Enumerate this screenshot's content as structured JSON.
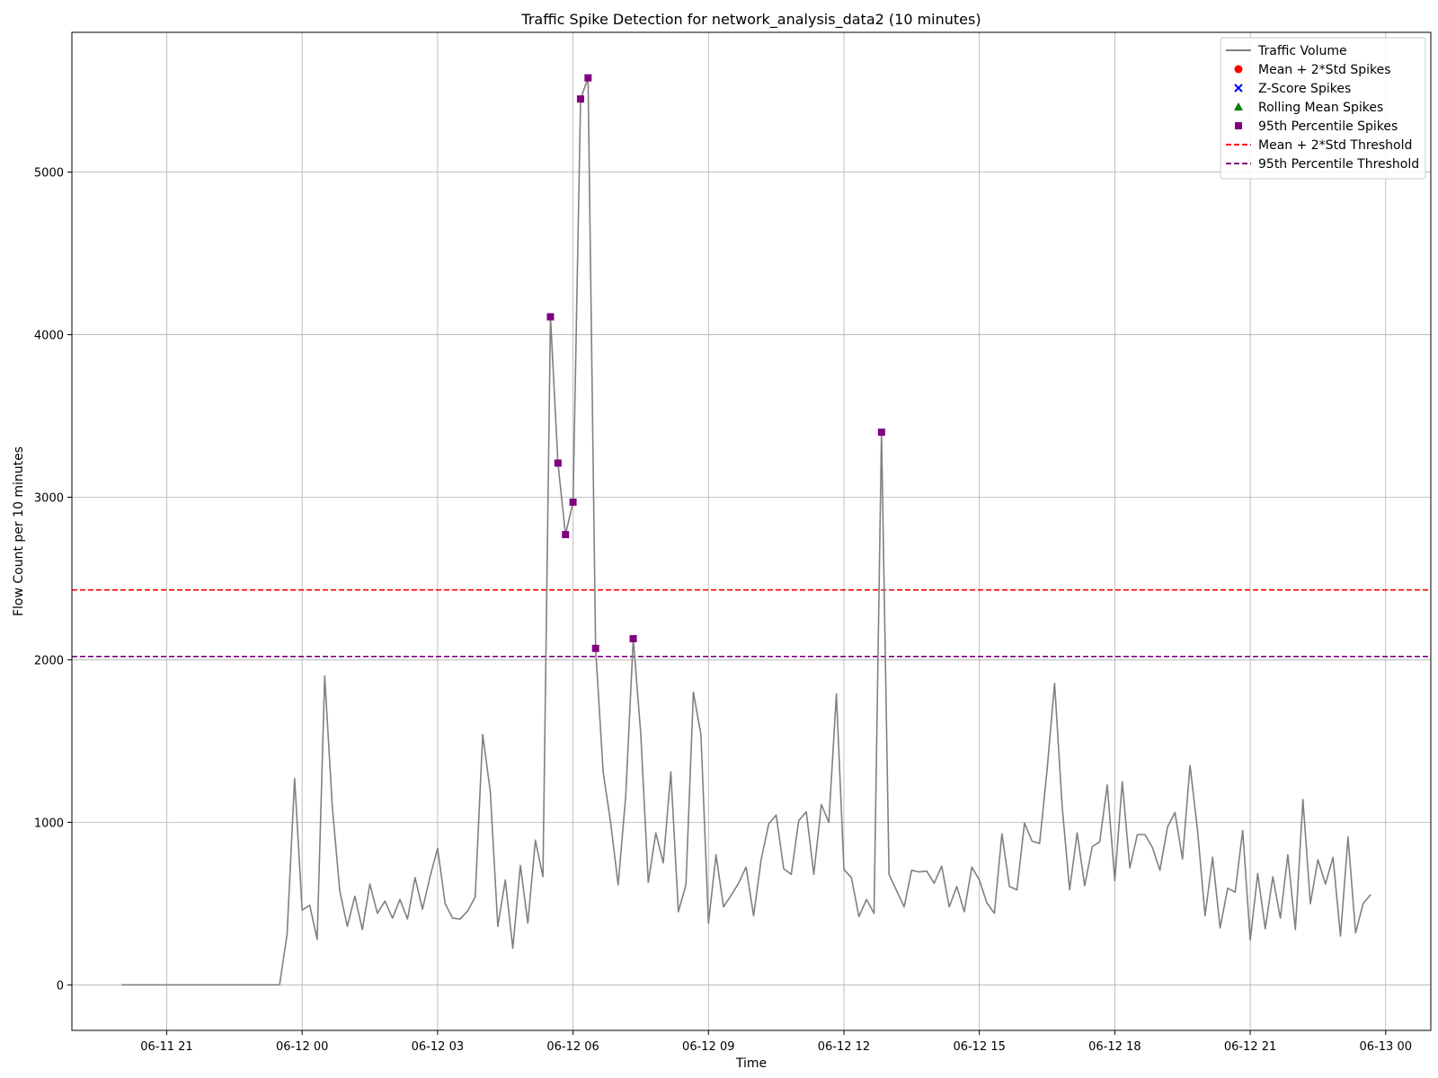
{
  "chart_data": {
    "type": "line",
    "title": "Traffic Spike Detection for network_analysis_data2 (10 minutes)",
    "xlabel": "Time",
    "ylabel": "Flow Count per 10 minutes",
    "x_start": "2024-06-11 20:00",
    "step_minutes": 10,
    "xlim": [
      "2024-06-11 18:54",
      "2024-06-13 01:00"
    ],
    "ylim": [
      -280,
      5860
    ],
    "xticks": [
      {
        "time": "2024-06-11 21:00",
        "label": "06-11 21"
      },
      {
        "time": "2024-06-12 00:00",
        "label": "06-12 00"
      },
      {
        "time": "2024-06-12 03:00",
        "label": "06-12 03"
      },
      {
        "time": "2024-06-12 06:00",
        "label": "06-12 06"
      },
      {
        "time": "2024-06-12 09:00",
        "label": "06-12 09"
      },
      {
        "time": "2024-06-12 12:00",
        "label": "06-12 12"
      },
      {
        "time": "2024-06-12 15:00",
        "label": "06-12 15"
      },
      {
        "time": "2024-06-12 18:00",
        "label": "06-12 18"
      },
      {
        "time": "2024-06-12 21:00",
        "label": "06-12 21"
      },
      {
        "time": "2024-06-13 00:00",
        "label": "06-13 00"
      }
    ],
    "yticks": [
      0,
      1000,
      2000,
      3000,
      4000,
      5000
    ],
    "grid": true,
    "legend_position": "top-right",
    "series": [
      {
        "name": "Traffic Volume",
        "color": "#808080",
        "values": [
          0,
          0,
          0,
          0,
          0,
          0,
          0,
          0,
          0,
          0,
          0,
          0,
          0,
          0,
          0,
          0,
          0,
          0,
          0,
          0,
          0,
          0,
          310,
          1270,
          460,
          490,
          280,
          1900,
          1100,
          580,
          360,
          545,
          340,
          620,
          440,
          515,
          410,
          525,
          405,
          660,
          465,
          665,
          840,
          500,
          410,
          405,
          455,
          540,
          1540,
          1190,
          360,
          645,
          225,
          735,
          380,
          890,
          665,
          4110,
          3210,
          2770,
          2970,
          5450,
          5580,
          2070,
          1310,
          1000,
          615,
          1160,
          2130,
          1550,
          630,
          935,
          750,
          1310,
          450,
          615,
          1800,
          1540,
          380,
          800,
          480,
          550,
          625,
          725,
          425,
          770,
          990,
          1045,
          715,
          680,
          1010,
          1065,
          680,
          1110,
          1000,
          1790,
          710,
          660,
          420,
          525,
          440,
          3400,
          680,
          580,
          480,
          705,
          695,
          700,
          625,
          730,
          480,
          605,
          450,
          725,
          645,
          505,
          440,
          930,
          605,
          585,
          995,
          885,
          870,
          1320,
          1855,
          1100,
          585,
          935,
          610,
          850,
          880,
          1230,
          640,
          1250,
          720,
          925,
          925,
          845,
          705,
          970,
          1060,
          775,
          1350,
          950,
          425,
          785,
          350,
          595,
          570,
          950,
          275,
          685,
          345,
          665,
          410,
          800,
          340,
          1140,
          500,
          770,
          620,
          785,
          300,
          910,
          320,
          500,
          555
        ]
      }
    ],
    "spikes": {
      "name": "95th Percentile Spikes",
      "color": "#800080",
      "points": [
        {
          "time": "2024-06-12 05:30",
          "value": 4110
        },
        {
          "time": "2024-06-12 05:40",
          "value": 3210
        },
        {
          "time": "2024-06-12 05:50",
          "value": 2770
        },
        {
          "time": "2024-06-12 06:00",
          "value": 2970
        },
        {
          "time": "2024-06-12 06:10",
          "value": 5450
        },
        {
          "time": "2024-06-12 06:20",
          "value": 5580
        },
        {
          "time": "2024-06-12 06:30",
          "value": 2070
        },
        {
          "time": "2024-06-12 07:20",
          "value": 2130
        },
        {
          "time": "2024-06-12 12:50",
          "value": 3400
        }
      ]
    },
    "thresholds": [
      {
        "name": "Mean + 2*Std Threshold",
        "value": 2430,
        "color": "#ff0000"
      },
      {
        "name": "95th Percentile Threshold",
        "value": 2020,
        "color": "#800080"
      }
    ],
    "legend": [
      {
        "label": "Traffic Volume",
        "marker": "line",
        "color": "#808080"
      },
      {
        "label": "Mean + 2*Std Spikes",
        "marker": "circle",
        "color": "#ff0000"
      },
      {
        "label": "Z-Score Spikes",
        "marker": "x",
        "color": "#0000ff"
      },
      {
        "label": "Rolling Mean Spikes",
        "marker": "triangle",
        "color": "#008000"
      },
      {
        "label": "95th Percentile Spikes",
        "marker": "square",
        "color": "#800080"
      },
      {
        "label": "Mean + 2*Std Threshold",
        "marker": "dashed",
        "color": "#ff0000"
      },
      {
        "label": "95th Percentile Threshold",
        "marker": "dashed",
        "color": "#800080"
      }
    ]
  }
}
